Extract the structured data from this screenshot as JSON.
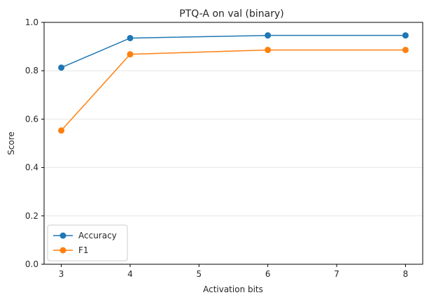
{
  "chart_data": {
    "type": "line",
    "title": "PTQ-A on val  (binary)",
    "xlabel": "Activation bits",
    "ylabel": "Score",
    "x": [
      3,
      4,
      6,
      8
    ],
    "xlim": [
      2.75,
      8.25
    ],
    "ylim": [
      0.0,
      1.0
    ],
    "xticks": [
      3,
      4,
      5,
      6,
      7,
      8
    ],
    "yticks": [
      0.0,
      0.2,
      0.4,
      0.6,
      0.8,
      1.0
    ],
    "ytick_labels": [
      "0.0",
      "0.2",
      "0.4",
      "0.6",
      "0.8",
      "1.0"
    ],
    "grid": "horizontal",
    "legend_position": "lower-left",
    "series": [
      {
        "name": "Accuracy",
        "color": "#1f77b4",
        "values": [
          0.813,
          0.935,
          0.946,
          0.946
        ]
      },
      {
        "name": "F1",
        "color": "#ff7f0e",
        "values": [
          0.553,
          0.868,
          0.886,
          0.886
        ]
      }
    ]
  }
}
